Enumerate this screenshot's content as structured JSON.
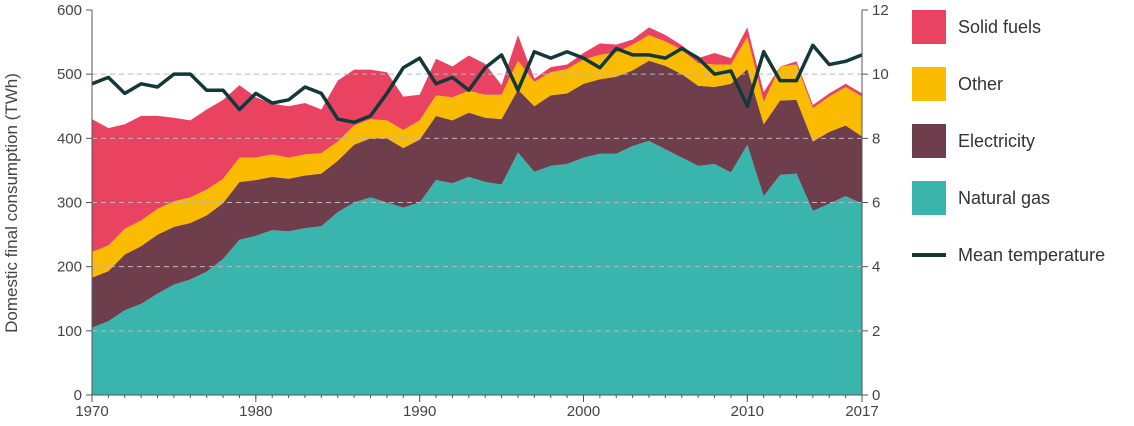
{
  "chart_data": {
    "type": "area",
    "stacked": true,
    "ylabel": "Domestic final consumption (TWh)",
    "ylim": [
      0,
      600
    ],
    "y_ticks": [
      "0",
      "100",
      "200",
      "300",
      "400",
      "500",
      "600"
    ],
    "y2lim": [
      0,
      12
    ],
    "y2_ticks": [
      "0",
      "2",
      "4",
      "6",
      "8",
      "10",
      "12"
    ],
    "xlim": [
      1970,
      2017
    ],
    "x_ticks": [
      {
        "value": 1970,
        "label": "1970"
      },
      {
        "value": 1980,
        "label": "1980"
      },
      {
        "value": 1990,
        "label": "1990"
      },
      {
        "value": 2000,
        "label": "2000"
      },
      {
        "value": 2010,
        "label": "2010"
      },
      {
        "value": 2017,
        "label": "2017"
      }
    ],
    "grid": "horizontal dashed",
    "legend_position": "right",
    "x": [
      1970,
      1971,
      1972,
      1973,
      1974,
      1975,
      1976,
      1977,
      1978,
      1979,
      1980,
      1981,
      1982,
      1983,
      1984,
      1985,
      1986,
      1987,
      1988,
      1989,
      1990,
      1991,
      1992,
      1993,
      1994,
      1995,
      1996,
      1997,
      1998,
      1999,
      2000,
      2001,
      2002,
      2003,
      2004,
      2005,
      2006,
      2007,
      2008,
      2009,
      2010,
      2011,
      2012,
      2013,
      2014,
      2015,
      2016,
      2017
    ],
    "series": [
      {
        "name": "Natural gas",
        "color": "#3ab5ad",
        "values": [
          105,
          115,
          132,
          142,
          158,
          172,
          180,
          192,
          212,
          242,
          248,
          257,
          255,
          260,
          263,
          285,
          300,
          308,
          300,
          292,
          300,
          335,
          330,
          340,
          332,
          328,
          378,
          348,
          357,
          360,
          370,
          376,
          376,
          388,
          396,
          383,
          370,
          357,
          360,
          347,
          390,
          310,
          343,
          345,
          287,
          298,
          310,
          298
        ]
      },
      {
        "name": "Electricity",
        "color": "#6f3e4d",
        "values": [
          78,
          78,
          87,
          90,
          92,
          90,
          88,
          88,
          87,
          90,
          87,
          83,
          82,
          82,
          82,
          80,
          90,
          92,
          100,
          93,
          98,
          100,
          98,
          100,
          100,
          102,
          98,
          102,
          110,
          110,
          115,
          116,
          120,
          118,
          125,
          130,
          130,
          125,
          120,
          138,
          118,
          112,
          116,
          115,
          108,
          112,
          110,
          105
        ]
      },
      {
        "name": "Other",
        "color": "#fbbb00",
        "values": [
          40,
          40,
          40,
          40,
          40,
          40,
          40,
          40,
          38,
          38,
          35,
          35,
          33,
          33,
          32,
          30,
          30,
          30,
          28,
          28,
          30,
          32,
          36,
          34,
          36,
          38,
          45,
          38,
          36,
          38,
          38,
          38,
          38,
          40,
          40,
          38,
          38,
          35,
          35,
          30,
          50,
          35,
          53,
          55,
          52,
          55,
          60,
          62
        ]
      },
      {
        "name": "Solid fuels",
        "color": "#e94361",
        "values": [
          207,
          183,
          163,
          163,
          145,
          130,
          120,
          125,
          123,
          113,
          94,
          79,
          80,
          80,
          68,
          95,
          87,
          77,
          75,
          52,
          40,
          57,
          48,
          55,
          48,
          15,
          40,
          5,
          8,
          7,
          10,
          18,
          12,
          8,
          12,
          10,
          7,
          8,
          18,
          10,
          15,
          15,
          0,
          5,
          5,
          5,
          5,
          5
        ]
      }
    ],
    "temperature": {
      "name": "Mean temperature",
      "color": "#12383a",
      "values": [
        9.7,
        9.9,
        9.4,
        9.7,
        9.6,
        10,
        10,
        9.5,
        9.5,
        8.9,
        9.4,
        9.1,
        9.2,
        9.6,
        9.4,
        8.6,
        8.5,
        8.7,
        9.4,
        10.2,
        10.5,
        9.7,
        9.9,
        9.5,
        10.2,
        10.6,
        9.5,
        10.7,
        10.5,
        10.7,
        10.5,
        10.2,
        10.8,
        10.6,
        10.6,
        10.5,
        10.8,
        10.5,
        10,
        10.1,
        9,
        10.7,
        9.8,
        9.8,
        10.9,
        10.3,
        10.4,
        10.6
      ]
    },
    "legend": [
      {
        "label": "Solid fuels",
        "color": "#e94361",
        "shape": "box"
      },
      {
        "label": "Other",
        "color": "#fbbb00",
        "shape": "box"
      },
      {
        "label": "Electricity",
        "color": "#6f3e4d",
        "shape": "box"
      },
      {
        "label": "Natural gas",
        "color": "#3ab5ad",
        "shape": "box"
      },
      {
        "label": "Mean temperature",
        "color": "#12383a",
        "shape": "line"
      }
    ]
  }
}
